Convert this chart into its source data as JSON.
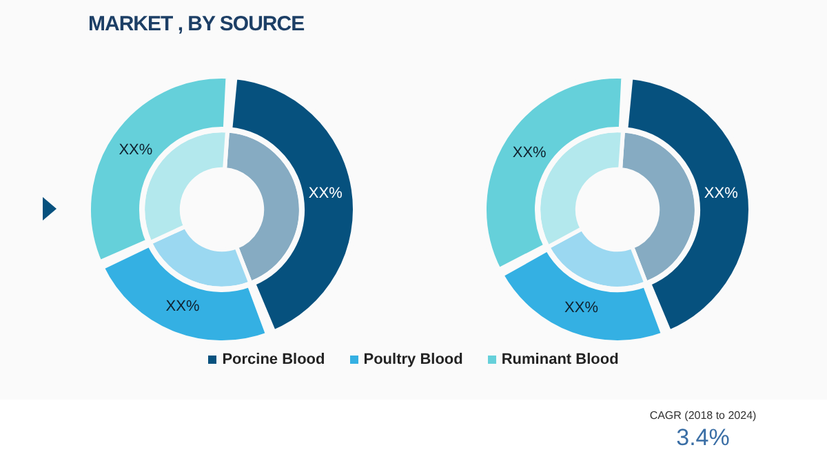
{
  "chart_data": [
    {
      "type": "donut",
      "title": "MARKET , BY SOURCE",
      "categories": [
        "Porcine Blood",
        "Poultry Blood",
        "Ruminant Blood"
      ],
      "legend": "bottom",
      "series": [
        {
          "values": [
            43,
            24,
            33
          ],
          "colors": [
            "#06517e",
            "#34b0e3",
            "#65d0da"
          ],
          "value_labels": [
            "XX%",
            "XX%",
            "XX%"
          ]
        },
        {
          "values": [
            43,
            24,
            33
          ],
          "colors": [
            "#86abc2",
            "#9bd8f1",
            "#b3e8ed"
          ]
        }
      ]
    },
    {
      "type": "donut",
      "series": [
        {
          "values": [
            43,
            23,
            34
          ],
          "colors": [
            "#06517e",
            "#34b0e3",
            "#65d0da"
          ],
          "value_labels": [
            "XX%",
            "XX%",
            "XX%"
          ]
        },
        {
          "values": [
            43,
            23,
            34
          ],
          "colors": [
            "#86abc2",
            "#9bd8f1",
            "#b3e8ed"
          ]
        }
      ]
    },
    {
      "type": "other",
      "annotations": [
        "CAGR (2018 to 2024)",
        "3.4%"
      ]
    }
  ]
}
